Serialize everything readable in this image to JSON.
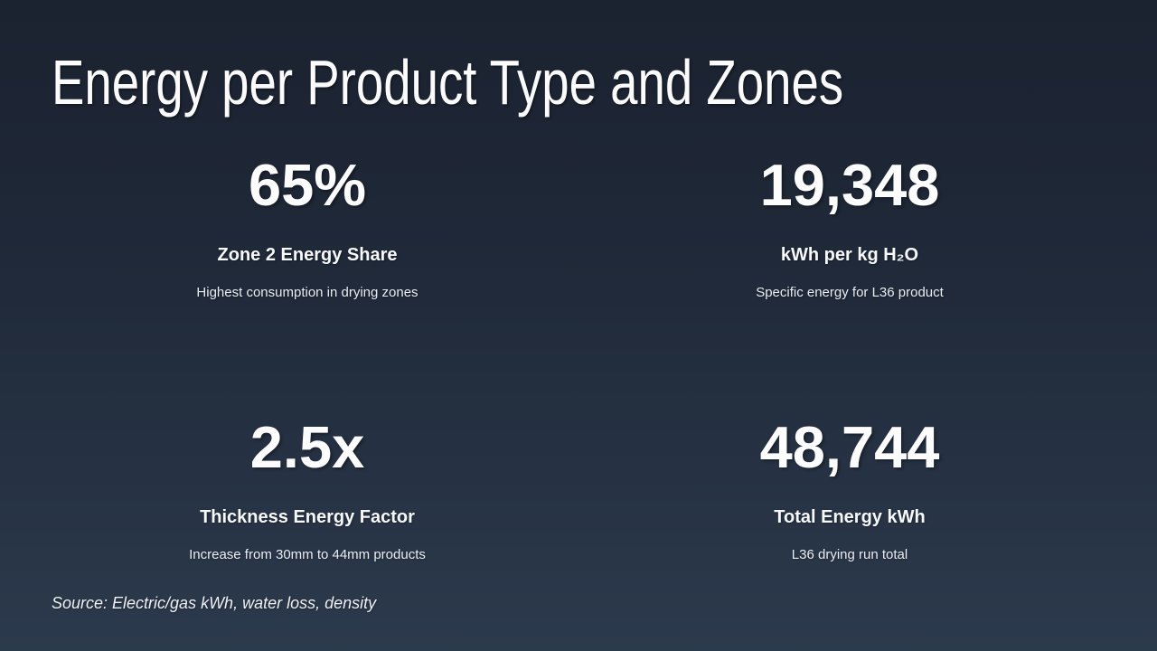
{
  "slide": {
    "title": "Energy per Product Type and Zones",
    "source": "Source: Electric/gas kWh, water loss, density",
    "colors": {
      "background_top": "#1b2230",
      "background_bottom": "#2c3a4d",
      "text": "#ffffff"
    },
    "stats": [
      {
        "value": "65%",
        "label": "Zone 2 Energy Share",
        "description": "Highest consumption in drying zones"
      },
      {
        "value": "19,348",
        "label": "kWh per kg H₂O",
        "description": "Specific energy for L36 product"
      },
      {
        "value": "2.5x",
        "label": "Thickness Energy Factor",
        "description": "Increase from 30mm to 44mm products"
      },
      {
        "value": "48,744",
        "label": "Total Energy kWh",
        "description": "L36 drying run total"
      }
    ]
  }
}
